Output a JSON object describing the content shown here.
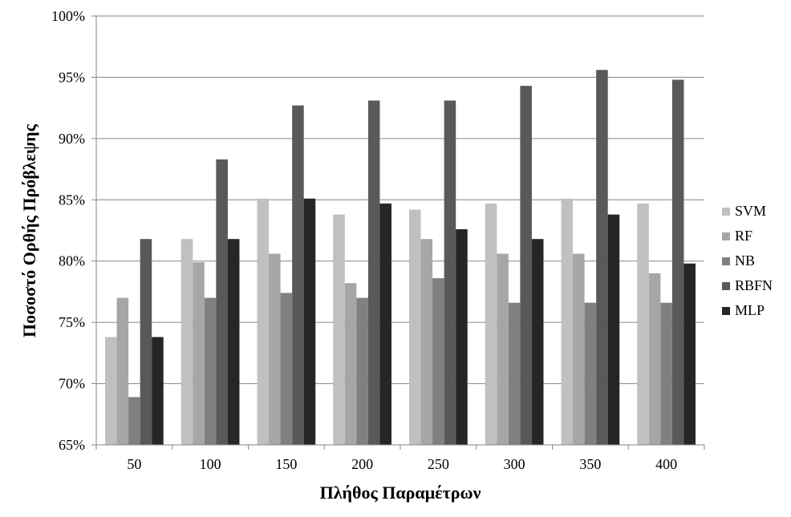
{
  "chart_data": {
    "type": "bar",
    "title": "",
    "xlabel": "Πλήθος Παραμέτρων",
    "ylabel": "Ποσοστό Ορθής Πρόβλεψης",
    "categories": [
      "50",
      "100",
      "150",
      "200",
      "250",
      "300",
      "350",
      "400"
    ],
    "ylim": [
      0.65,
      1.0
    ],
    "yticks": [
      "65%",
      "70%",
      "75%",
      "80%",
      "85%",
      "90%",
      "95%",
      "100%"
    ],
    "grid": true,
    "legend_position": "right",
    "series": [
      {
        "name": "SVM",
        "color": "#c0c0c0",
        "values": [
          0.738,
          0.818,
          0.851,
          0.838,
          0.842,
          0.847,
          0.851,
          0.847
        ]
      },
      {
        "name": "RF",
        "color": "#a6a6a6",
        "values": [
          0.77,
          0.799,
          0.806,
          0.782,
          0.818,
          0.806,
          0.806,
          0.79
        ]
      },
      {
        "name": "NB",
        "color": "#808080",
        "values": [
          0.689,
          0.77,
          0.774,
          0.77,
          0.786,
          0.766,
          0.766,
          0.766
        ]
      },
      {
        "name": "RBFN",
        "color": "#595959",
        "values": [
          0.818,
          0.883,
          0.927,
          0.931,
          0.931,
          0.943,
          0.956,
          0.948
        ]
      },
      {
        "name": "MLP",
        "color": "#262626",
        "values": [
          0.738,
          0.818,
          0.851,
          0.847,
          0.826,
          0.818,
          0.838,
          0.798
        ]
      }
    ]
  }
}
